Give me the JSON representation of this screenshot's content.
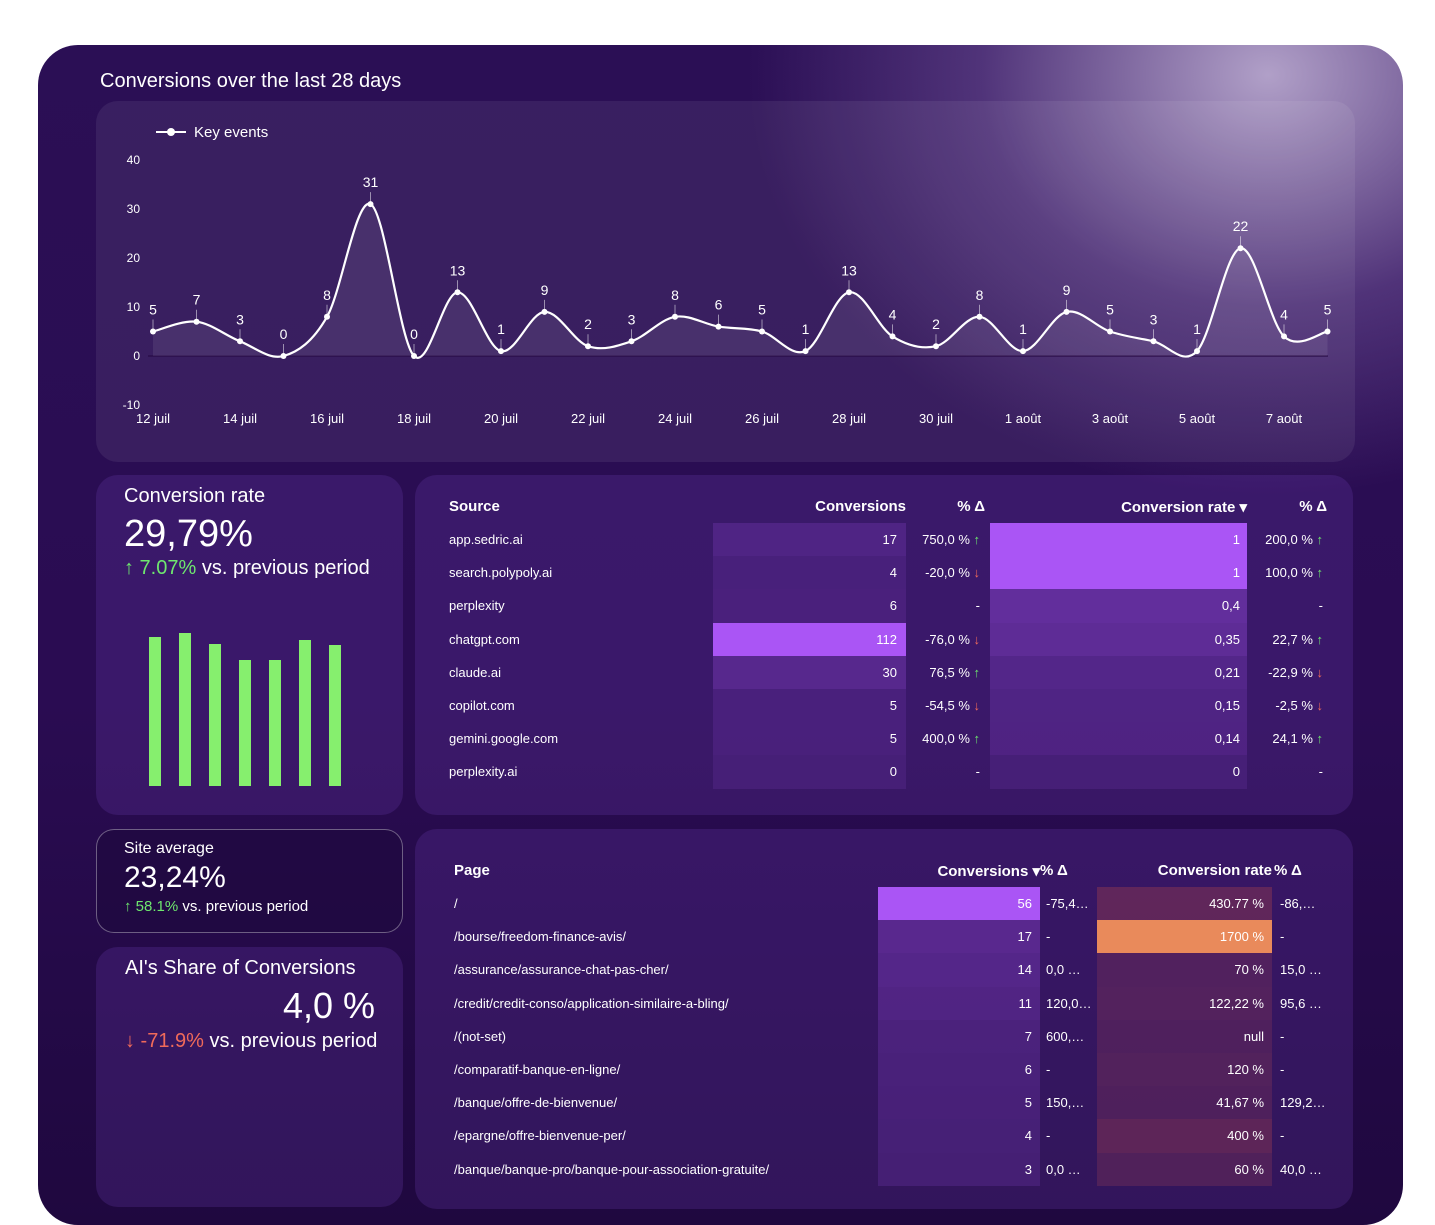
{
  "chart_data": [
    {
      "type": "line",
      "title": "Conversions over the last 28 days",
      "categories": [
        "12 juil",
        null,
        "14 juil",
        null,
        "16 juil",
        null,
        "18 juil",
        null,
        "20 juil",
        null,
        "22 juil",
        null,
        "24 juil",
        null,
        "26 juil",
        null,
        "28 juil",
        null,
        "30 juil",
        null,
        "1 août",
        null,
        "3 août",
        null,
        "5 août",
        null,
        "7 août",
        null
      ],
      "series": [
        {
          "name": "Key events",
          "color": "#ffffff",
          "values": [
            5,
            7,
            3,
            0,
            8,
            31,
            0,
            13,
            1,
            9,
            2,
            3,
            8,
            6,
            5,
            1,
            13,
            4,
            2,
            8,
            1,
            9,
            5,
            3,
            1,
            22,
            4,
            5
          ]
        }
      ],
      "ylim": [
        -10,
        40
      ],
      "yticks": [
        -10,
        0,
        10,
        20,
        30,
        40
      ],
      "grid": false,
      "legend": "top-left"
    },
    {
      "type": "bar",
      "values": [
        149,
        153,
        142,
        126,
        126,
        146,
        141
      ],
      "color": "#86ef6e"
    }
  ],
  "kpis": {
    "conversion_rate": {
      "label": "Conversion rate",
      "value": "29,79%",
      "delta": "↑ 7.07%",
      "comparison": "vs. previous period"
    },
    "site_average": {
      "label": "Site average",
      "value": "23,24%",
      "delta": "↑ 58.1%",
      "comparison": "vs. previous period"
    },
    "ai_share": {
      "label": "AI's Share of Conversions",
      "value": "4,0 %",
      "delta": "↓ -71.9%",
      "comparison": "vs. previous period"
    }
  },
  "source_table": {
    "columns": [
      "Source",
      "Conversions",
      "% Δ",
      "Conversion rate ▾",
      "% Δ"
    ],
    "rows": [
      [
        "app.sedric.ai",
        17,
        "750,0 % ↑",
        "1",
        "200,0 % ↑"
      ],
      [
        "search.polypoly.ai",
        4,
        "-20,0 % ↓",
        "1",
        "100,0 % ↑"
      ],
      [
        "perplexity",
        6,
        "-",
        "0,4",
        "-"
      ],
      [
        "chatgpt.com",
        112,
        "-76,0 % ↓",
        "0,35",
        "22,7 % ↑"
      ],
      [
        "claude.ai",
        30,
        "76,5 % ↑",
        "0,21",
        "-22,9 % ↓"
      ],
      [
        "copilot.com",
        5,
        "-54,5 % ↓",
        "0,15",
        "-2,5 % ↓"
      ],
      [
        "gemini.google.com",
        5,
        "400,0 % ↑",
        "0,14",
        "24,1 % ↑"
      ],
      [
        "perplexity.ai",
        0,
        "-",
        "0",
        "-"
      ]
    ]
  },
  "page_table": {
    "columns": [
      "Page",
      "Conversions ▾",
      "% Δ",
      "Conversion rate",
      "% Δ"
    ],
    "rows": [
      [
        "/",
        56,
        "-75,4…",
        "430.77 %",
        "-86,…"
      ],
      [
        "/bourse/freedom-finance-avis/",
        17,
        "-",
        "1700 %",
        "-"
      ],
      [
        "/assurance/assurance-chat-pas-cher/",
        14,
        "0,0 …",
        "70 %",
        "15,0 …"
      ],
      [
        "/credit/credit-conso/application-similaire-a-bling/",
        11,
        "120,0…",
        "122,22 %",
        "95,6 …"
      ],
      [
        "/(not-set)",
        7,
        "600,…",
        "null",
        "-"
      ],
      [
        "/comparatif-banque-en-ligne/",
        6,
        "-",
        "120 %",
        "-"
      ],
      [
        "/banque/offre-de-bienvenue/",
        5,
        "150,…",
        "41,67 %",
        "129,2…"
      ],
      [
        "/epargne/offre-bienvenue-per/",
        4,
        "-",
        "400 %",
        "-"
      ],
      [
        "/banque/banque-pro/banque-pour-association-gratuite/",
        3,
        "0,0 …",
        "60 %",
        "40,0 …"
      ]
    ]
  }
}
